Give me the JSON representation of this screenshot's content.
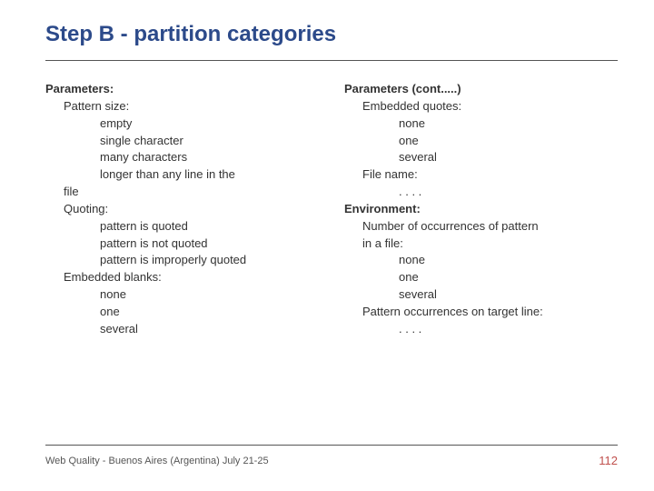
{
  "colors": {
    "title": "#2c4a8a",
    "text": "#333333",
    "rule": "#555555",
    "page_number": "#c0504d",
    "footer_text": "#555555",
    "background": "#ffffff"
  },
  "typography": {
    "title_fontsize": 24,
    "body_fontsize": 13,
    "footer_fontsize": 11,
    "page_number_fontsize": 13,
    "font_family": "Trebuchet MS"
  },
  "title": "Step B - partition categories",
  "left": {
    "h0": "Parameters:",
    "h1": "Pattern size:",
    "i1a": "empty",
    "i1b": "single character",
    "i1c": "many characters",
    "i1d": "longer than any line in the",
    "i1d_cont": "file",
    "h2": "Quoting:",
    "i2a": "pattern is quoted",
    "i2b": "pattern is not quoted",
    "i2c": "pattern is improperly quoted",
    "h3": "Embedded blanks:",
    "i3a": "none",
    "i3b": "one",
    "i3c": "several"
  },
  "right": {
    "h0": "Parameters (cont.....)",
    "h1": "Embedded quotes:",
    "i1a": "none",
    "i1b": "one",
    "i1c": "several",
    "h2": "File name:",
    "i2a": ". . . .",
    "h3": "Environment:",
    "h4": "Number of occurrences of pattern",
    "h4b": "in a file:",
    "i4a": "none",
    "i4b": "one",
    "i4c": "several",
    "h5": "Pattern occurrences on target line:",
    "i5a": ". . . ."
  },
  "footer": {
    "left": "Web Quality - Buenos Aires (Argentina) July 21-25",
    "page": "112"
  }
}
